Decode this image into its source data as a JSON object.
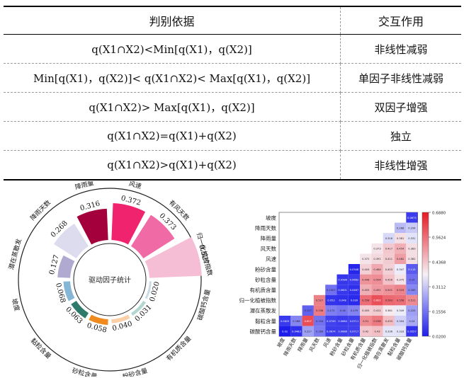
{
  "table": {
    "headers": [
      "判别依据",
      "交互作用"
    ],
    "rows": [
      {
        "criterion": "q(X1∩X2)<Min[q(X1)，q(X2)]",
        "interaction": "非线性减弱"
      },
      {
        "criterion": "Min[q(X1)，q(X2)]< q(X1∩X2)< Max[q(X1)，q(X2)]",
        "interaction": "单因子非线性减弱"
      },
      {
        "criterion": "q(X1∩X2)> Max[q(X1)，q(X2)]",
        "interaction": "双因子增强"
      },
      {
        "criterion": "q(X1∩X2)=q(X1)+q(X2)",
        "interaction": "独立"
      },
      {
        "criterion": "q(X1∩X2)>q(X1)+q(X2)",
        "interaction": "非线性增强"
      }
    ]
  },
  "chart_data": [
    {
      "type": "radial-bar",
      "title": "驱动因子统计",
      "categories": [
        "风速",
        "有风天数",
        "归一化植被指数",
        "碳酸钙含量",
        "有机质含量",
        "粉砂含量",
        "砂粒含量",
        "黏粒含量",
        "坡度",
        "潜在蒸散发",
        "降雨天数",
        "降雨量"
      ],
      "values": [
        0.372,
        0.373,
        0.527,
        0.02,
        0.031,
        0.04,
        0.058,
        0.063,
        0.068,
        0.127,
        0.268,
        0.316
      ],
      "colors": [
        "#f0246e",
        "#f06aa6",
        "#f6bed5",
        "#c8dce8",
        "#b2d6d0",
        "#fbd0a8",
        "#f08a1e",
        "#2e7b6c",
        "#86b6d6",
        "#b0aad0",
        "#dcdcee",
        "#a3003c"
      ]
    },
    {
      "type": "heatmap",
      "labels": [
        "坡度",
        "降雨天数",
        "降雨量",
        "风天数",
        "风速",
        "粉砂含量",
        "砂粒含量",
        "有机质含量",
        "归一化植被指数",
        "潜在蒸散发",
        "黏粒含量",
        "碳酸钙含量"
      ],
      "colorbar_ticks": [
        "0.6880",
        "0.5624",
        "0.4368",
        "0.3112",
        "0.1556",
        "0.0200"
      ],
      "rows": [
        [
          0.0675
        ],
        [
          0.268,
          0.294
        ],
        [
          0.316,
          0.381,
          0.331
        ],
        [
          0.373,
          0.417,
          0.454,
          0.383
        ],
        [
          0.372,
          0.391,
          0.411,
          0.482,
          0.382
        ],
        [
          0.0348,
          0.404,
          0.464,
          0.403,
          0.347,
          0.115
        ],
        [
          0.0586,
          0.0662,
          0.498,
          0.504,
          0.426,
          0.375,
          0.15
        ],
        [
          0.1507,
          0.0601,
          0.0467,
          0.455,
          0.491,
          0.501,
          0.523,
          0.185
        ],
        [
          0.527,
          0.053,
          0.048,
          0.039,
          0.558,
          0.602,
          0.563,
          0.556,
          0.511
        ],
        [
          0.127,
          0.536,
          0.172,
          0.16,
          0.179,
          0.405,
          0.412,
          0.361,
          0.349,
          0.225
        ],
        [
          0.0625,
          0.186,
          0.607,
          0.154,
          0.0749,
          0.0664,
          0.0711,
          0.51,
          0.538,
          0.433,
          0.304,
          0.24
        ],
        [
          0.02,
          0.0483,
          0.227,
          0.169,
          0.0674,
          0.0686,
          0.0717,
          0.42,
          0.43,
          0.336,
          0.333,
          0.0557
        ]
      ]
    }
  ]
}
